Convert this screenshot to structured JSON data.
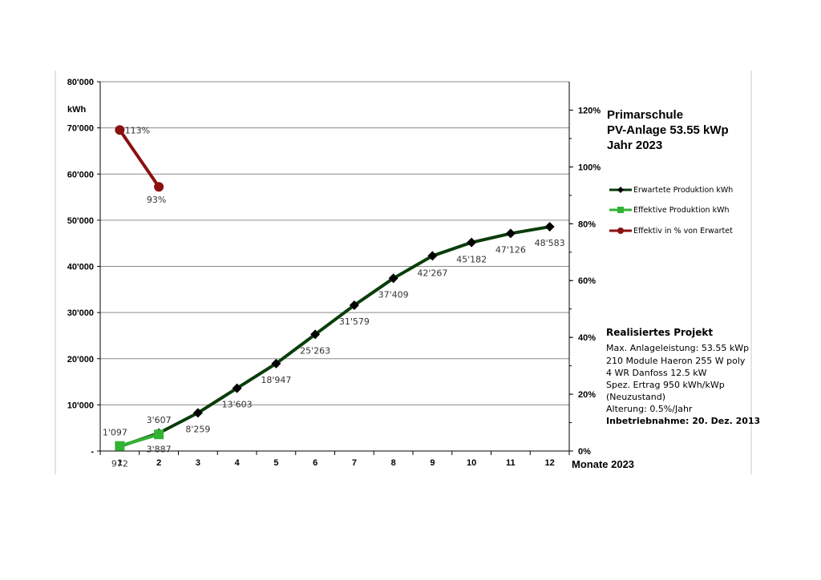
{
  "chart_data": {
    "type": "line",
    "title_lines": [
      "Primarschule",
      "PV-Anlage 53.55 kWp",
      "Jahr 2023"
    ],
    "ylabel": "kWh",
    "xlabel": "Monate 2023",
    "x": [
      1,
      2,
      3,
      4,
      5,
      6,
      7,
      8,
      9,
      10,
      11,
      12
    ],
    "x_tick_labels": [
      "1",
      "2",
      "3",
      "4",
      "5",
      "6",
      "7",
      "8",
      "9",
      "10",
      "11",
      "12"
    ],
    "ylim": [
      0,
      80000
    ],
    "y_tick_labels": [
      "-",
      "10'000",
      "20'000",
      "30'000",
      "40'000",
      "50'000",
      "60'000",
      "70'000",
      "80'000"
    ],
    "y2lim": [
      0,
      1.3
    ],
    "y2_tick_labels": [
      "0%",
      "20%",
      "40%",
      "60%",
      "80%",
      "100%",
      "120%"
    ],
    "grid": true,
    "legend_position": "right",
    "series": [
      {
        "name": "Erwartete Produktion kWh",
        "axis": "left",
        "color": "#0a3d0a",
        "marker": "diamond",
        "x": [
          1,
          2,
          3,
          4,
          5,
          6,
          7,
          8,
          9,
          10,
          11,
          12
        ],
        "values": [
          972,
          3887,
          8259,
          13603,
          18947,
          25263,
          31579,
          37409,
          42267,
          45182,
          47126,
          48583
        ],
        "labels": [
          "972",
          "3'887",
          "8'259",
          "13'603",
          "18'947",
          "25'263",
          "31'579",
          "37'409",
          "42'267",
          "45'182",
          "47'126",
          "48'583"
        ]
      },
      {
        "name": "Effektive Produktion kWh",
        "axis": "left",
        "color": "#33b233",
        "marker": "square",
        "x": [
          1,
          2
        ],
        "values": [
          1097,
          3607
        ],
        "labels": [
          "1'097",
          "3'607"
        ]
      },
      {
        "name": "Effektiv in % von Erwartet",
        "axis": "right",
        "color": "#8b1010",
        "marker": "circle",
        "x": [
          1,
          2
        ],
        "values": [
          1.13,
          0.93
        ],
        "labels": [
          "113%",
          "93%"
        ]
      }
    ]
  },
  "info": {
    "heading": "Realisiertes Projekt",
    "lines": [
      "Max. Anlageleistung: 53.55 kWp",
      "210 Module Haeron 255 W poly",
      "4 WR Danfoss 12.5 kW",
      "Spez. Ertrag 950 kWh/kWp",
      "(Neuzustand)",
      "Alterung: 0.5%/Jahr"
    ],
    "commission": "Inbetriebnahme: 20. Dez. 2013"
  }
}
